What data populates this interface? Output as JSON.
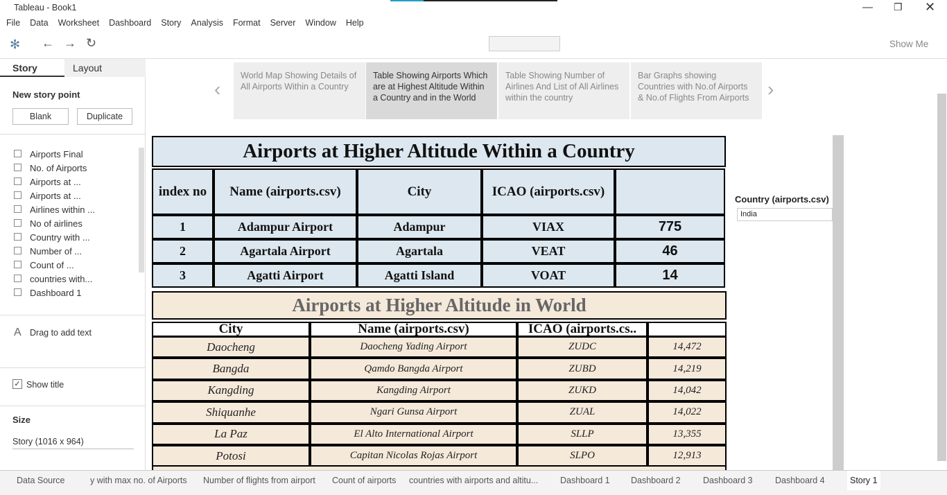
{
  "window": {
    "title": "Tableau - Book1"
  },
  "menu": [
    "File",
    "Data",
    "Worksheet",
    "Dashboard",
    "Story",
    "Analysis",
    "Format",
    "Server",
    "Window",
    "Help"
  ],
  "toolbar": {
    "show_me": "Show Me"
  },
  "sidebar": {
    "tabs": [
      "Story",
      "Layout"
    ],
    "new_story_point": "New story point",
    "buttons": [
      "Blank",
      "Duplicate"
    ],
    "sheets": [
      "Airports Final",
      "No. of Airports",
      "Airports at ...",
      "Airports at ...",
      "Airlines within ...",
      "No of airlines",
      "Country with ...",
      "Number of ...",
      "Count of ...",
      "countries with...",
      "Dashboard 1"
    ],
    "drag_text": "Drag to add text",
    "show_title": "Show title",
    "size_label": "Size",
    "size_value": "Story (1016 x 964)"
  },
  "story_points": [
    "World Map Showing Details of All Airports Within a Country",
    "Table Showing Airports Which are at Highest Altitude Within a Country and in the World",
    "Table Showing Number of Airlines And List of All Airlines within the country",
    "Bar Graphs showing Countries with No.of Airports & No.of Flights From Airports"
  ],
  "table1": {
    "title": "Airports at Higher Altitude Within a Country",
    "headers": [
      "index no",
      "Name (airports.csv)",
      "City",
      "ICAO (airports.csv)"
    ],
    "rows": [
      [
        "1",
        "Adampur Airport",
        "Adampur",
        "VIAX",
        "775"
      ],
      [
        "2",
        "Agartala Airport",
        "Agartala",
        "VEAT",
        "46"
      ],
      [
        "3",
        "Agatti Airport",
        "Agatti Island",
        "VOAT",
        "14"
      ]
    ]
  },
  "table2": {
    "title": "Airports at Higher Altitude in World",
    "headers": [
      "City",
      "Name (airports.csv)",
      "ICAO (airports.cs.."
    ],
    "rows": [
      [
        "Daocheng",
        "Daocheng Yading Airport",
        "ZUDC",
        "14,472"
      ],
      [
        "Bangda",
        "Qamdo Bangda Airport",
        "ZUBD",
        "14,219"
      ],
      [
        "Kangding",
        "Kangding Airport",
        "ZUKD",
        "14,042"
      ],
      [
        "Shiquanhe",
        "Ngari Gunsa Airport",
        "ZUAL",
        "14,022"
      ],
      [
        "La Paz",
        "El Alto International Airport",
        "SLLP",
        "13,355"
      ],
      [
        "Potosi",
        "Capitan Nicolas Rojas Airport",
        "SLPO",
        "12,913"
      ]
    ]
  },
  "filter": {
    "label": "Country (airports.csv)",
    "value": "India"
  },
  "bottom_tabs": [
    "Data Source",
    "y with max no. of Airports",
    "Number of flights from airport",
    "Count of airports",
    "countries with airports and altitu...",
    "Dashboard 1",
    "Dashboard 2",
    "Dashboard 3",
    "Dashboard 4",
    "Story 1"
  ]
}
